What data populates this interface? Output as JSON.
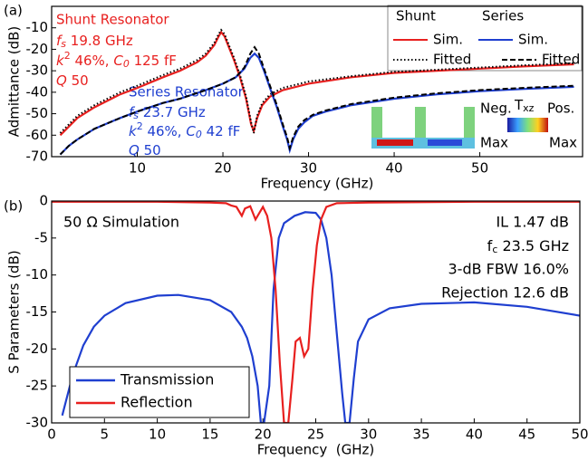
{
  "chart_data": [
    {
      "type": "line",
      "panel_label": "(a)",
      "xlabel": "Frequency (GHz)",
      "ylabel": "Admittance (dB)",
      "xlim": [
        0,
        62
      ],
      "ylim": [
        -70,
        0
      ],
      "xticks": [
        10,
        20,
        30,
        40,
        50
      ],
      "yticks": [
        -70,
        -60,
        -50,
        -40,
        -30,
        -20,
        -10
      ],
      "legend_groups": [
        "Shunt",
        "Series"
      ],
      "series": [
        {
          "name": "Sim.",
          "color": "#e8201f",
          "style": "solid",
          "x": [
            1,
            3,
            5,
            8,
            10,
            13,
            15,
            17,
            18,
            19,
            19.5,
            19.8,
            20.2,
            20.7,
            21.3,
            22,
            22.7,
            23.3,
            23.6,
            24,
            24.6,
            25.5,
            27,
            30,
            35,
            40,
            45,
            50,
            55,
            61
          ],
          "values": [
            -60,
            -52,
            -47,
            -41,
            -38,
            -33,
            -30,
            -26,
            -23,
            -18,
            -14,
            -12,
            -14,
            -19,
            -25,
            -33,
            -43,
            -55,
            -58,
            -52,
            -46,
            -42,
            -39,
            -36,
            -33,
            -31,
            -30,
            -29,
            -28,
            -27
          ]
        },
        {
          "name": "Fitted",
          "color": "#000000",
          "style": "dotted",
          "x": [
            1,
            3,
            5,
            8,
            10,
            13,
            15,
            17,
            18,
            19,
            19.5,
            19.8,
            20.2,
            20.7,
            21.3,
            22,
            22.7,
            23.3,
            23.6,
            24,
            24.6,
            25.5,
            27,
            30,
            35,
            40,
            45,
            50,
            55,
            61
          ],
          "values": [
            -59,
            -51,
            -46,
            -40,
            -37,
            -32,
            -29,
            -25,
            -22,
            -17,
            -13,
            -11,
            -13,
            -18,
            -24,
            -32,
            -42,
            -54,
            -59,
            -51,
            -45,
            -41,
            -38,
            -35,
            -32.5,
            -30.5,
            -29.5,
            -28.5,
            -27.5,
            -26.5
          ]
        },
        {
          "name": "Sim.",
          "color": "#1f3fd0",
          "style": "solid",
          "x": [
            1,
            2,
            3,
            5,
            8,
            10,
            13,
            15,
            18,
            20,
            21.5,
            22.5,
            23.2,
            23.7,
            24.2,
            24.8,
            25.5,
            26.3,
            27,
            27.5,
            27.8,
            28.2,
            28.8,
            29.5,
            30.5,
            32,
            35,
            40,
            45,
            50,
            55,
            61
          ],
          "values": [
            -69,
            -65,
            -62,
            -57,
            -52,
            -49,
            -45,
            -43,
            -39,
            -36,
            -33,
            -29,
            -24,
            -22,
            -24,
            -30,
            -38,
            -47,
            -56,
            -62,
            -67,
            -62,
            -57,
            -54,
            -51,
            -49,
            -46,
            -43,
            -41,
            -39.5,
            -38.5,
            -37.5
          ]
        },
        {
          "name": "Fitted",
          "color": "#000000",
          "style": "dashed",
          "x": [
            1,
            2,
            3,
            5,
            8,
            10,
            13,
            15,
            18,
            20,
            21.5,
            22.5,
            23.2,
            23.7,
            24.2,
            24.8,
            25.5,
            26.3,
            27,
            27.5,
            27.8,
            28.2,
            28.8,
            29.5,
            30.5,
            32,
            35,
            40,
            45,
            50,
            55,
            61
          ],
          "values": [
            -69,
            -65,
            -62,
            -57,
            -52,
            -49,
            -45,
            -43,
            -39,
            -36,
            -33,
            -28.5,
            -22,
            -19,
            -22,
            -29,
            -37,
            -46,
            -55,
            -61,
            -66,
            -61,
            -56,
            -53,
            -50.5,
            -48.5,
            -45.5,
            -42.5,
            -40.5,
            -39,
            -38,
            -37
          ]
        }
      ],
      "annotations": [
        {
          "color": "#e8201f",
          "lines": [
            [
              "Shunt Resonator"
            ],
            [
              "f",
              "s",
              " 19.8 GHz"
            ],
            [
              "k",
              "2",
              " 46%, ",
              "C",
              "0",
              " 125 fF"
            ],
            [
              "Q",
              " 50"
            ]
          ]
        },
        {
          "color": "#1f3fd0",
          "lines": [
            [
              "Series Resonator"
            ],
            [
              "f",
              "s",
              " 23.7 GHz"
            ],
            [
              "k",
              "2",
              " 46%, ",
              "C",
              "0",
              " 42 fF"
            ],
            [
              "Q",
              " 50"
            ]
          ]
        }
      ],
      "inset_labels": [
        "Neg.",
        "T",
        "xz",
        "Pos.",
        "Max",
        "Max"
      ]
    },
    {
      "type": "line",
      "panel_label": "(b)",
      "xlabel": "Frequency  (GHz)",
      "ylabel": "S Parameters (dB)",
      "xlim": [
        0,
        50
      ],
      "ylim": [
        -30,
        0
      ],
      "xticks": [
        0,
        5,
        10,
        15,
        20,
        25,
        30,
        35,
        40,
        45,
        50
      ],
      "yticks": [
        -30,
        -25,
        -20,
        -15,
        -10,
        -5,
        0
      ],
      "legend": "lower left",
      "series": [
        {
          "name": "Transmission",
          "color": "#1f3fd0",
          "style": "solid",
          "x": [
            1,
            2,
            3,
            4,
            5,
            7,
            10,
            12,
            15,
            17,
            18,
            18.5,
            19,
            19.5,
            19.8,
            20.1,
            20.6,
            21,
            21.5,
            22,
            23,
            24,
            25,
            25.5,
            26,
            26.5,
            27,
            27.5,
            27.8,
            28.2,
            28.6,
            29,
            30,
            32,
            35,
            40,
            45,
            50
          ],
          "values": [
            -29,
            -23.5,
            -19.5,
            -17,
            -15.5,
            -13.8,
            -12.8,
            -12.7,
            -13.4,
            -15,
            -17,
            -18.5,
            -21,
            -25,
            -30,
            -30,
            -25,
            -12,
            -5,
            -3,
            -2,
            -1.5,
            -1.6,
            -2.5,
            -5,
            -10,
            -18,
            -26,
            -30,
            -30,
            -24,
            -19,
            -16,
            -14.5,
            -13.9,
            -13.7,
            -14.3,
            -15.5
          ]
        },
        {
          "name": "Reflection",
          "color": "#e8201f",
          "style": "solid",
          "x": [
            0,
            5,
            10,
            15,
            16.5,
            17,
            17.5,
            18,
            18.3,
            18.8,
            19.3,
            20,
            20.4,
            20.8,
            21.2,
            21.6,
            22,
            22.4,
            22.8,
            23.1,
            23.5,
            23.9,
            24.3,
            24.7,
            25.1,
            25.5,
            26,
            27,
            30,
            40,
            50
          ],
          "values": [
            -0.1,
            -0.1,
            -0.1,
            -0.2,
            -0.3,
            -0.6,
            -0.8,
            -2,
            -1,
            -0.7,
            -2.5,
            -0.8,
            -2,
            -5,
            -12,
            -22,
            -30,
            -30,
            -24,
            -19,
            -18.5,
            -21,
            -20,
            -12,
            -6,
            -2.5,
            -0.8,
            -0.3,
            -0.2,
            -0.1,
            -0.1
          ]
        }
      ],
      "annotations": [
        {
          "lines": [
            [
              "50 Ω Simulation"
            ]
          ]
        },
        {
          "lines": [
            [
              "IL 1.47 dB"
            ],
            [
              "f",
              "c",
              " 23.5 GHz"
            ],
            [
              "3-dB FBW 16.0%"
            ],
            [
              "Rejection 12.6 dB"
            ]
          ]
        }
      ]
    }
  ]
}
